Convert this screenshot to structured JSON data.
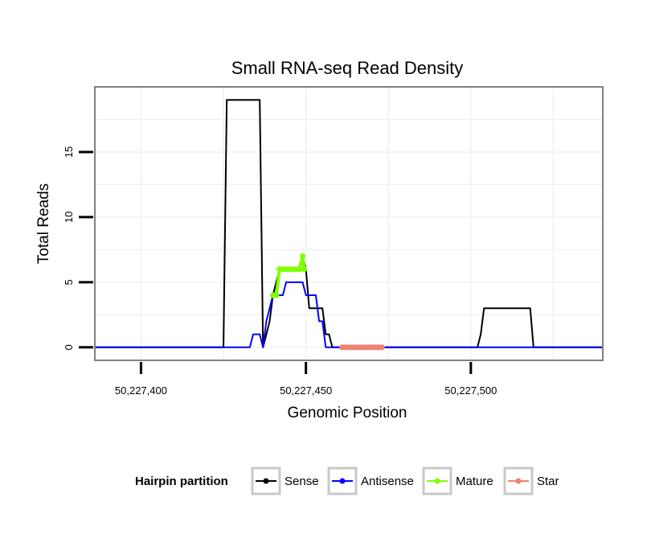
{
  "chart_data": {
    "type": "line",
    "title": "Small RNA-seq Read Density",
    "xlabel": "Genomic Position",
    "ylabel": "Total Reads",
    "xlim": [
      50227386,
      50227540
    ],
    "ylim": [
      -1,
      20
    ],
    "x_ticks": [
      50227400,
      50227450,
      50227500
    ],
    "x_tick_labels": [
      "50,227,400",
      "50,227,450",
      "50,227,500"
    ],
    "y_ticks": [
      0,
      5,
      10,
      15
    ],
    "y_tick_labels": [
      "0",
      "5",
      "10",
      "15"
    ],
    "grid": true,
    "legend": {
      "title": "Hairpin partition",
      "position": "bottom",
      "entries": [
        {
          "name": "Sense",
          "color": "#000000"
        },
        {
          "name": "Antisense",
          "color": "#0000ff"
        },
        {
          "name": "Mature",
          "color": "#7fff00"
        },
        {
          "name": "Star",
          "color": "#f08070"
        }
      ]
    },
    "series": [
      {
        "name": "Sense",
        "color": "#000000",
        "markers": false,
        "x": [
          50227386,
          50227425,
          50227426,
          50227436,
          50227437,
          50227438,
          50227439,
          50227440,
          50227441,
          50227442,
          50227446,
          50227447,
          50227448,
          50227449,
          50227450,
          50227451,
          50227452,
          50227455,
          50227456,
          50227457,
          50227458,
          50227502,
          50227503,
          50227504,
          50227518,
          50227519,
          50227540
        ],
        "y": [
          0,
          0,
          19,
          19,
          0,
          1,
          2,
          4,
          5,
          6,
          6,
          6,
          6,
          7,
          6,
          3,
          3,
          3,
          1,
          1,
          0,
          0,
          1,
          3,
          3,
          0,
          0
        ]
      },
      {
        "name": "Antisense",
        "color": "#0000ff",
        "markers": false,
        "x": [
          50227386,
          50227433,
          50227434,
          50227436,
          50227437,
          50227438,
          50227439,
          50227440,
          50227443,
          50227444,
          50227448,
          50227449,
          50227450,
          50227453,
          50227454,
          50227455,
          50227456,
          50227540
        ],
        "y": [
          0,
          0,
          1,
          1,
          0,
          2,
          3,
          4,
          4,
          5,
          5,
          5,
          4,
          4,
          2,
          2,
          0,
          0
        ]
      },
      {
        "name": "Mature",
        "color": "#7fff00",
        "markers": true,
        "x": [
          50227440,
          50227441,
          50227442,
          50227443,
          50227444,
          50227445,
          50227446,
          50227447,
          50227448,
          50227449,
          50227449.5
        ],
        "y": [
          4,
          4,
          6,
          6,
          6,
          6,
          6,
          6,
          6,
          7,
          6
        ]
      },
      {
        "name": "Star",
        "color": "#f08070",
        "markers": true,
        "x": [
          50227461,
          50227462,
          50227463,
          50227464,
          50227465,
          50227466,
          50227467,
          50227468,
          50227469,
          50227470,
          50227471,
          50227472,
          50227473
        ],
        "y": [
          0,
          0,
          0,
          0,
          0,
          0,
          0,
          0,
          0,
          0,
          0,
          0,
          0
        ]
      }
    ]
  }
}
